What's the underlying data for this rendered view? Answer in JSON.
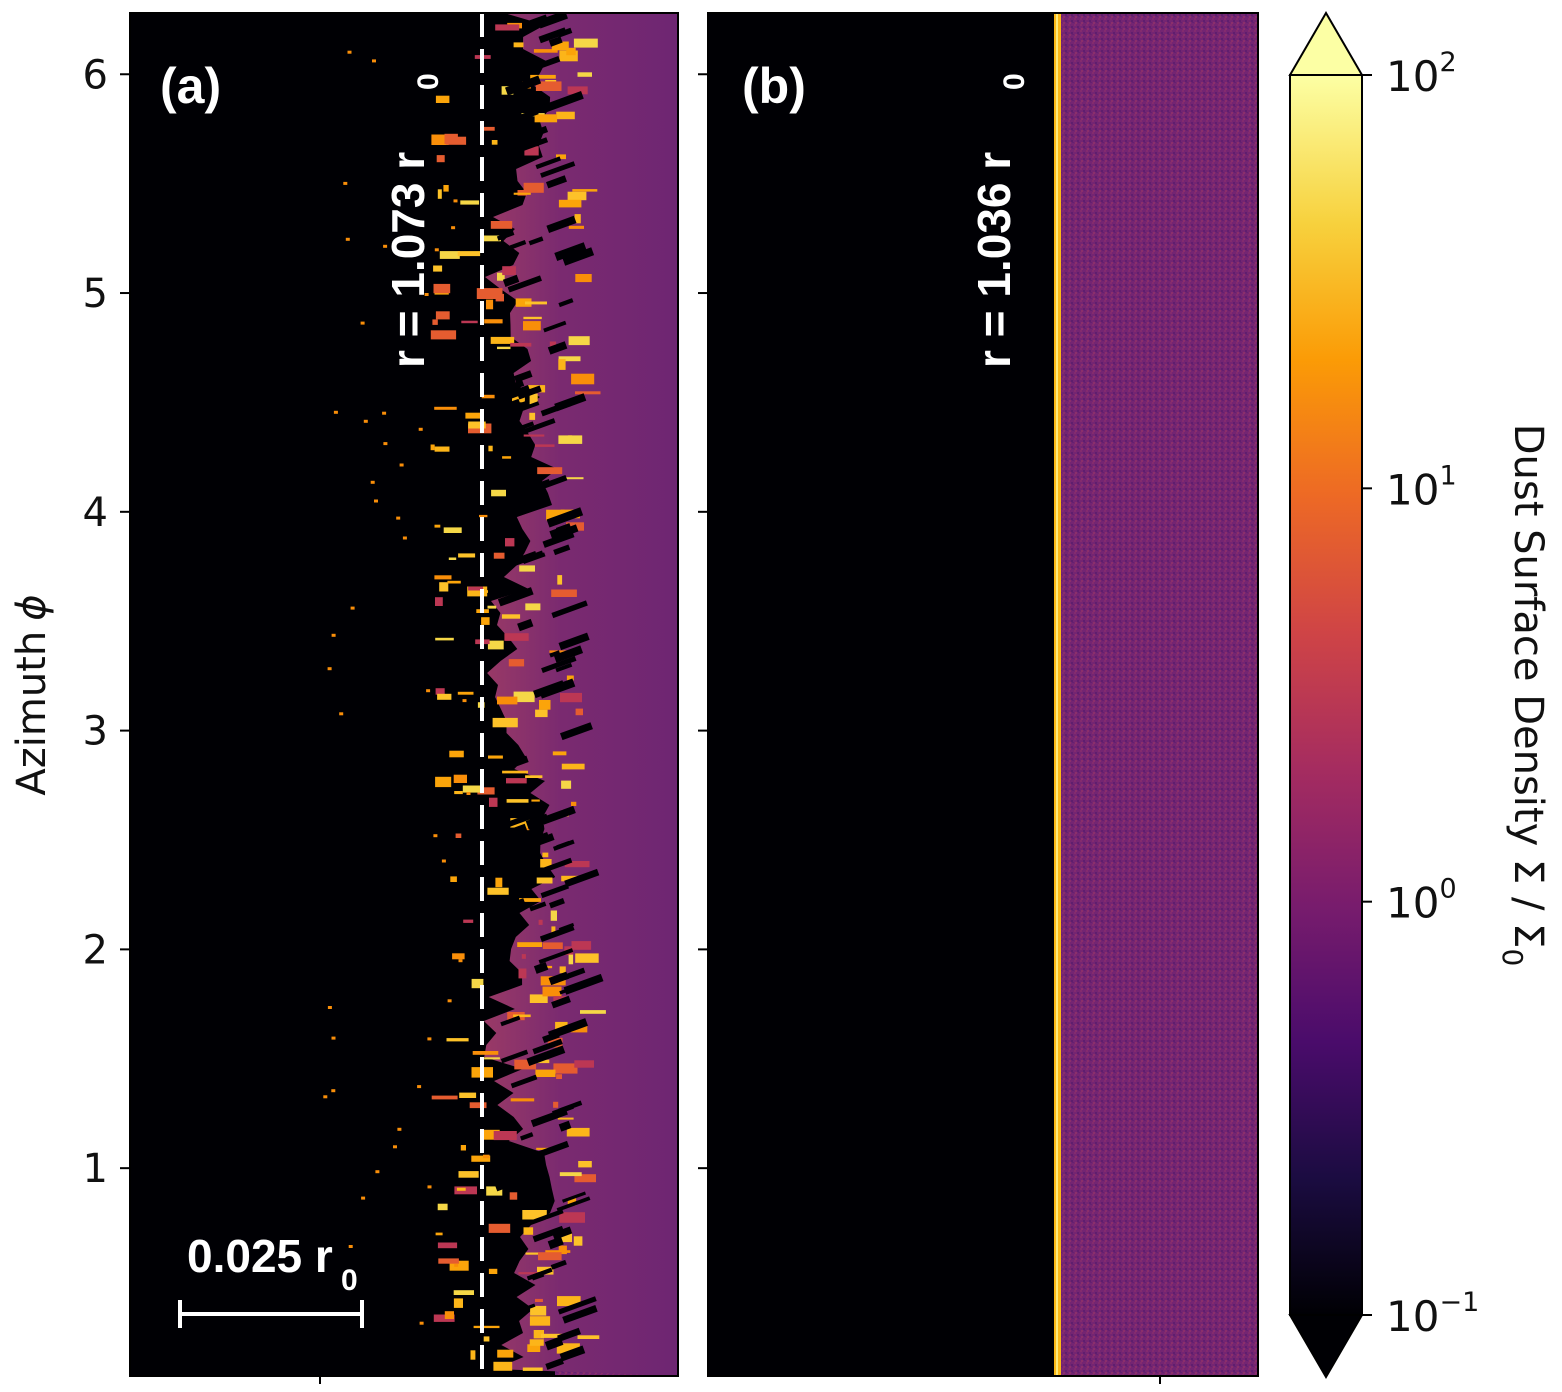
{
  "chart_data": [
    {
      "type": "heatmap",
      "panel_label": "(a)",
      "ylabel": "Azimuth",
      "ylabel_symbol": "ϕ",
      "y_ticks": [
        1,
        2,
        3,
        4,
        5,
        6
      ],
      "ylim": [
        0.05,
        6.28
      ],
      "annotation": {
        "text": "r = 1.073 r",
        "subscript": "0",
        "radius": 1.073,
        "marker": "dashed white line"
      },
      "scale_bar": {
        "text": "0.025 r",
        "subscript": "0",
        "length_r0": 0.025
      },
      "description_values": {
        "background": "empty inner disc (Σ below 0.1)",
        "outer_region_level": 1.0,
        "clump_level_max": 30
      }
    },
    {
      "type": "heatmap",
      "panel_label": "(b)",
      "y_ticks": [
        1,
        2,
        3,
        4,
        5,
        6
      ],
      "ylim": [
        0.05,
        6.28
      ],
      "annotation": {
        "text": "r = 1.036 r",
        "subscript": "0",
        "radius": 1.036,
        "marker": "bright ring edge"
      },
      "description_values": {
        "background": "empty inner disc (Σ below 0.1)",
        "outer_region_level": 1.0,
        "edge_level": 30
      }
    }
  ],
  "colorbar": {
    "label": "Dust Surface Density Σ / Σ",
    "label_subscript": "0",
    "scale": "log",
    "range": [
      0.1,
      100
    ],
    "ticks": [
      {
        "value": 100,
        "base": "10",
        "exp": "2"
      },
      {
        "value": 10,
        "base": "10",
        "exp": "1"
      },
      {
        "value": 1,
        "base": "10",
        "exp": "0"
      },
      {
        "value": 0.1,
        "base": "10",
        "exp": "−1"
      }
    ],
    "extend": "both",
    "colormap": "inferno",
    "stops": [
      "#000004",
      "#1b0c41",
      "#4a0c6b",
      "#781c6d",
      "#a52c60",
      "#cf4446",
      "#ed6925",
      "#fb9b06",
      "#f7d13d",
      "#fcffa4"
    ]
  }
}
